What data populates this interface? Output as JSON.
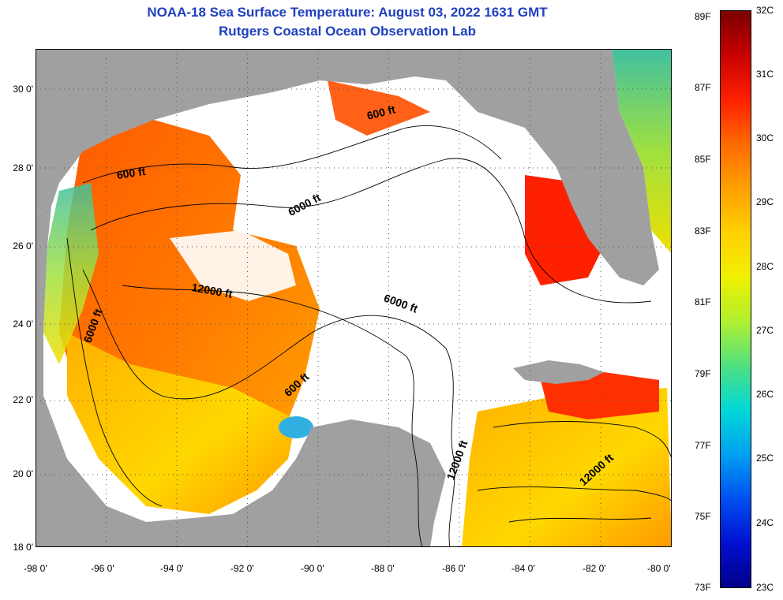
{
  "title": {
    "line1": "NOAA-18 Sea Surface Temperature:  August 03, 2022 1631 GMT",
    "line2": "Rutgers Coastal Ocean Observation Lab"
  },
  "map": {
    "lat_ticks": [
      "30 0'",
      "28 0'",
      "26 0'",
      "24 0'",
      "22 0'",
      "20 0'",
      "18 0'"
    ],
    "lon_ticks": [
      "-98 0'",
      "-96 0'",
      "-94 0'",
      "-92 0'",
      "-90 0'",
      "-88 0'",
      "-86 0'",
      "-84 0'",
      "-82 0'",
      "-80 0'"
    ],
    "lat_range": [
      18,
      31
    ],
    "lon_range": [
      -98,
      -80
    ],
    "contour_labels": [
      "600 ft",
      "600 ft",
      "6000 ft",
      "12000 ft",
      "6000 ft",
      "6000 ft",
      "600 ft",
      "12000 ft",
      "12000 ft"
    ],
    "land_color": "#a0a0a0",
    "cloud_color": "#ffffff"
  },
  "colorbar": {
    "fahrenheit_labels": [
      "89F",
      "87F",
      "85F",
      "83F",
      "81F",
      "79F",
      "77F",
      "75F",
      "73F"
    ],
    "celsius_labels": [
      "32C",
      "31C",
      "30C",
      "29C",
      "28C",
      "27C",
      "26C",
      "25C",
      "24C",
      "23C"
    ],
    "colors": [
      "#7a0000",
      "#c80000",
      "#ff2000",
      "#ff6a00",
      "#ffa000",
      "#ffd000",
      "#f0f000",
      "#b0f030",
      "#50e080",
      "#00d8d8",
      "#00a0f0",
      "#0050f0",
      "#0010d0",
      "#00008a"
    ]
  }
}
